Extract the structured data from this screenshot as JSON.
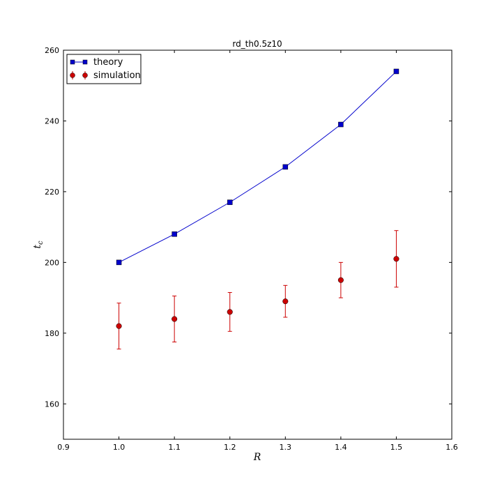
{
  "chart_data": {
    "type": "line",
    "title": "rd_th0.5z10",
    "xlabel": "R",
    "ylabel": "t",
    "ylabel_sub": "c",
    "xlim": [
      0.9,
      1.6
    ],
    "ylim": [
      150,
      260
    ],
    "xticks": [
      "0.9",
      "1.0",
      "1.1",
      "1.2",
      "1.3",
      "1.4",
      "1.5",
      "1.6"
    ],
    "yticks": [
      "160",
      "180",
      "200",
      "220",
      "240",
      "260"
    ],
    "grid": false,
    "legend_position": "top-left",
    "series": [
      {
        "name": "theory",
        "kind": "line-square-markers",
        "color": "#0000cc",
        "x": [
          1.0,
          1.1,
          1.2,
          1.3,
          1.4,
          1.5
        ],
        "y": [
          200,
          208,
          217,
          227,
          239,
          254
        ]
      },
      {
        "name": "simulation",
        "kind": "errorbar-circle-markers",
        "color": "#cc0000",
        "x": [
          1.0,
          1.1,
          1.2,
          1.3,
          1.4,
          1.5
        ],
        "y": [
          182,
          184,
          186,
          189,
          195,
          201
        ],
        "yerr": [
          6.5,
          6.5,
          5.5,
          4.5,
          5.0,
          8.0
        ]
      }
    ]
  }
}
